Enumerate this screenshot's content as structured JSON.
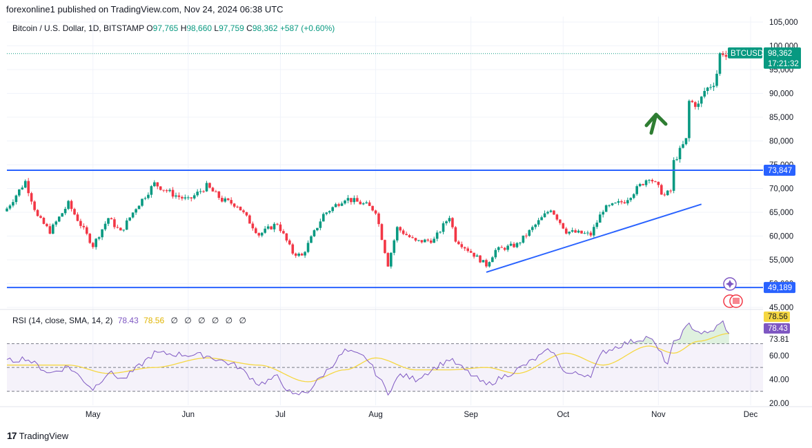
{
  "header": {
    "published": "forexonline1 published on TradingView.com, Nov 24, 2024 06:38 UTC"
  },
  "legend": {
    "symbol": "Bitcoin / U.S. Dollar, 1D, BITSTAMP",
    "o_label": "O",
    "o": "97,765",
    "h_label": "H",
    "h": "98,660",
    "l_label": "L",
    "l": "97,759",
    "c_label": "C",
    "c": "98,362",
    "change": "+587 (+0.60%)"
  },
  "rsi_legend": {
    "name": "RSI (14, close, SMA, 14, 2)",
    "rsi": "78.43",
    "sma": "78.56",
    "na": [
      "∅",
      "∅",
      "∅",
      "∅",
      "∅",
      "∅"
    ]
  },
  "price_badge": {
    "ticker": "BTCUSD",
    "price": "98,362",
    "countdown": "17:21:32"
  },
  "level_badges": [
    "73,847",
    "49,189"
  ],
  "rsi_badges": {
    "sma": "78.56",
    "rsi": "78.43"
  },
  "footer": {
    "brand": "TradingView"
  },
  "colors": {
    "up": "#089981",
    "down": "#f23645",
    "level": "#2962ff",
    "trend": "#2962ff",
    "arrow": "#2e7d32",
    "rsi": "#7e57c2",
    "rsi_sma": "#f5d742",
    "band": "#7e57c2"
  },
  "chart_data": [
    {
      "type": "candlestick",
      "title": "Bitcoin / U.S. Dollar, 1D, BITSTAMP",
      "y_ticks": [
        "45,000",
        "50,000",
        "55,000",
        "60,000",
        "65,000",
        "70,000",
        "75,000",
        "80,000",
        "85,000",
        "90,000",
        "95,000",
        "100,000",
        "105,000"
      ],
      "ylim": [
        45000,
        105000
      ],
      "x_ticks": [
        "May",
        "Jun",
        "Jul",
        "Aug",
        "Sep",
        "Oct",
        "Nov",
        "Dec"
      ],
      "x_tick_dates": [
        "2024-05-01",
        "2024-06-01",
        "2024-07-01",
        "2024-08-01",
        "2024-09-01",
        "2024-10-01",
        "2024-11-01",
        "2024-12-01"
      ],
      "x_range": [
        "2024-04-03",
        "2024-12-01"
      ],
      "horizontal_levels": [
        73847,
        49189
      ],
      "trendline": {
        "from": [
          "2024-09-06",
          52400
        ],
        "to": [
          "2024-11-15",
          66700
        ]
      },
      "keypoints": [
        [
          "2024-04-03",
          65800
        ],
        [
          "2024-04-09",
          71500
        ],
        [
          "2024-04-13",
          64000
        ],
        [
          "2024-04-17",
          61000
        ],
        [
          "2024-04-23",
          66800
        ],
        [
          "2024-05-01",
          58000
        ],
        [
          "2024-05-06",
          63800
        ],
        [
          "2024-05-10",
          60800
        ],
        [
          "2024-05-15",
          66000
        ],
        [
          "2024-05-21",
          71000
        ],
        [
          "2024-05-27",
          68800
        ],
        [
          "2024-06-01",
          67500
        ],
        [
          "2024-06-07",
          70500
        ],
        [
          "2024-06-12",
          67600
        ],
        [
          "2024-06-17",
          66500
        ],
        [
          "2024-06-24",
          60300
        ],
        [
          "2024-06-30",
          62700
        ],
        [
          "2024-07-05",
          56500
        ],
        [
          "2024-07-08",
          55800
        ],
        [
          "2024-07-15",
          64500
        ],
        [
          "2024-07-22",
          68000
        ],
        [
          "2024-07-29",
          66500
        ],
        [
          "2024-08-01",
          65300
        ],
        [
          "2024-08-05",
          54000
        ],
        [
          "2024-08-08",
          61700
        ],
        [
          "2024-08-14",
          58800
        ],
        [
          "2024-08-20",
          59200
        ],
        [
          "2024-08-25",
          64200
        ],
        [
          "2024-08-27",
          59300
        ],
        [
          "2024-09-06",
          53900
        ],
        [
          "2024-09-09",
          57000
        ],
        [
          "2024-09-16",
          58200
        ],
        [
          "2024-09-27",
          65800
        ],
        [
          "2024-10-02",
          61000
        ],
        [
          "2024-10-10",
          60300
        ],
        [
          "2024-10-14",
          65600
        ],
        [
          "2024-10-21",
          67400
        ],
        [
          "2024-10-29",
          72500
        ],
        [
          "2024-11-03",
          68500
        ],
        [
          "2024-11-05",
          69500
        ],
        [
          "2024-11-06",
          75600
        ],
        [
          "2024-11-10",
          80200
        ],
        [
          "2024-11-11",
          88300
        ],
        [
          "2024-11-14",
          87500
        ],
        [
          "2024-11-16",
          90500
        ],
        [
          "2024-11-19",
          92300
        ],
        [
          "2024-11-20",
          94300
        ],
        [
          "2024-11-21",
          98200
        ],
        [
          "2024-11-22",
          98700
        ],
        [
          "2024-11-23",
          97765
        ],
        [
          "2024-11-24",
          98362
        ]
      ]
    },
    {
      "type": "line",
      "title": "RSI (14, close, SMA, 14, 2)",
      "y_ticks": [
        "20.00",
        "40.00",
        "60.00",
        "73.81"
      ],
      "bands": [
        30,
        50,
        70
      ],
      "series": [
        {
          "name": "RSI",
          "keypoints": [
            [
              "2024-04-03",
              55
            ],
            [
              "2024-04-09",
              58
            ],
            [
              "2024-04-17",
              45
            ],
            [
              "2024-04-23",
              51
            ],
            [
              "2024-05-01",
              32
            ],
            [
              "2024-05-06",
              46
            ],
            [
              "2024-05-11",
              40
            ],
            [
              "2024-05-21",
              62
            ],
            [
              "2024-06-07",
              60
            ],
            [
              "2024-06-17",
              51
            ],
            [
              "2024-06-24",
              36
            ],
            [
              "2024-06-30",
              42
            ],
            [
              "2024-07-05",
              26
            ],
            [
              "2024-07-10",
              30
            ],
            [
              "2024-07-22",
              64
            ],
            [
              "2024-07-29",
              58
            ],
            [
              "2024-08-05",
              29
            ],
            [
              "2024-08-09",
              44
            ],
            [
              "2024-08-14",
              40
            ],
            [
              "2024-08-25",
              57
            ],
            [
              "2024-09-06",
              35
            ],
            [
              "2024-09-16",
              48
            ],
            [
              "2024-09-27",
              65
            ],
            [
              "2024-10-02",
              45
            ],
            [
              "2024-10-10",
              44
            ],
            [
              "2024-10-14",
              63
            ],
            [
              "2024-10-21",
              70
            ],
            [
              "2024-10-29",
              76
            ],
            [
              "2024-11-04",
              53
            ],
            [
              "2024-11-06",
              70
            ],
            [
              "2024-11-11",
              86
            ],
            [
              "2024-11-14",
              80
            ],
            [
              "2024-11-17",
              78
            ],
            [
              "2024-11-22",
              88
            ],
            [
              "2024-11-24",
              78.43
            ]
          ]
        },
        {
          "name": "SMA",
          "keypoints": [
            [
              "2024-04-03",
              52
            ],
            [
              "2024-04-23",
              52
            ],
            [
              "2024-05-06",
              45
            ],
            [
              "2024-05-21",
              50
            ],
            [
              "2024-06-07",
              58
            ],
            [
              "2024-06-24",
              52
            ],
            [
              "2024-07-10",
              38
            ],
            [
              "2024-07-22",
              48
            ],
            [
              "2024-08-01",
              58
            ],
            [
              "2024-08-14",
              48
            ],
            [
              "2024-08-25",
              48
            ],
            [
              "2024-09-06",
              50
            ],
            [
              "2024-09-16",
              45
            ],
            [
              "2024-10-02",
              62
            ],
            [
              "2024-10-14",
              52
            ],
            [
              "2024-10-29",
              68
            ],
            [
              "2024-11-06",
              62
            ],
            [
              "2024-11-14",
              72
            ],
            [
              "2024-11-24",
              78.56
            ]
          ]
        }
      ]
    }
  ]
}
